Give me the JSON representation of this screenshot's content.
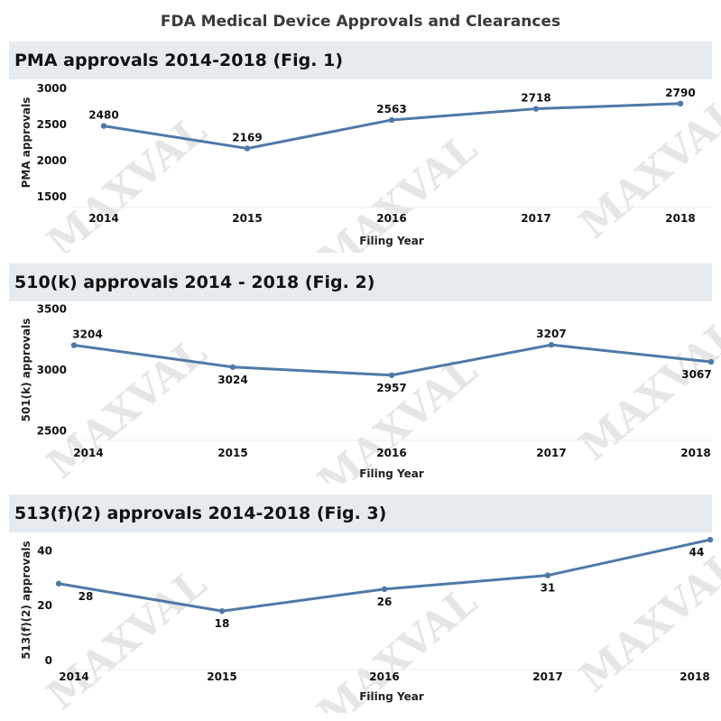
{
  "page_title": "FDA Medical Device Approvals and Clearances",
  "watermark": "MAXVAL",
  "colors": {
    "line": "#4e79a7",
    "header_bg": "#e6ebf0"
  },
  "chart_data": [
    {
      "type": "line",
      "title": "PMA approvals 2014-2018 (Fig. 1)",
      "xlabel": "Filing Year",
      "ylabel": "PMA approvals",
      "categories": [
        "2014",
        "2015",
        "2016",
        "2017",
        "2018"
      ],
      "values": [
        2480,
        2169,
        2563,
        2718,
        2790
      ],
      "yticks": [
        1500,
        2000,
        2500,
        3000
      ],
      "ylim": [
        1400,
        3100
      ],
      "grid": false
    },
    {
      "type": "line",
      "title": "510(k) approvals 2014 - 2018 (Fig. 2)",
      "xlabel": "Filing Year",
      "ylabel": "501(k) approvals",
      "categories": [
        "2014",
        "2015",
        "2016",
        "2017",
        "2018"
      ],
      "values": [
        3204,
        3024,
        2957,
        3207,
        3067
      ],
      "yticks": [
        2500,
        3000,
        3500
      ],
      "ylim": [
        2450,
        3550
      ],
      "grid": false
    },
    {
      "type": "line",
      "title": "513(f)(2) approvals 2014-2018 (Fig. 3)",
      "xlabel": "Filing Year",
      "ylabel": "513(f)(2) approvals",
      "categories": [
        "2014",
        "2015",
        "2016",
        "2017",
        "2018"
      ],
      "values": [
        28,
        18,
        26,
        31,
        44
      ],
      "yticks": [
        0,
        20,
        40
      ],
      "ylim": [
        -2,
        46
      ],
      "grid": false
    }
  ]
}
